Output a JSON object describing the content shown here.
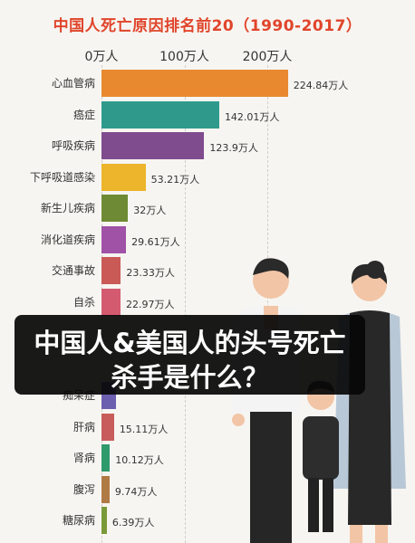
{
  "chart_data": {
    "type": "bar",
    "orientation": "horizontal",
    "title": "中国人死亡原因排名前20（1990-2017）",
    "x_ticks": [
      "0万人",
      "100万人",
      "200万人"
    ],
    "x_tick_values": [
      0,
      100,
      200
    ],
    "xlim": [
      0,
      250
    ],
    "grid": true,
    "categories": [
      "心血管病",
      "癌症",
      "呼吸疾病",
      "下呼吸道感染",
      "新生儿疾病",
      "消化道疾病",
      "交通事故",
      "自杀",
      "",
      "",
      "痴呆症",
      "肝病",
      "肾病",
      "腹泻",
      "糖尿病"
    ],
    "values": [
      224.84,
      142.01,
      123.9,
      53.21,
      32,
      29.61,
      23.33,
      22.97,
      null,
      null,
      18,
      15.11,
      10.12,
      9.74,
      6.39
    ],
    "value_labels": [
      "224.84万人",
      "142.01万人",
      "123.9万人",
      "53.21万人",
      "32万人",
      "29.61万人",
      "23.33万人",
      "22.97万人",
      "",
      "",
      "",
      "15.11万人",
      "10.12万人",
      "9.74万人",
      "6.39万人"
    ],
    "colors": [
      "#e8892f",
      "#2f9a8c",
      "#7f4c8e",
      "#ecb52b",
      "#6f8a34",
      "#a052a7",
      "#c95a55",
      "#d35a6f",
      "#5a9bd4",
      "#3e8f6f",
      "#6c5fb0",
      "#c85b5b",
      "#2f9a6c",
      "#b07a45",
      "#7a9a3a"
    ]
  },
  "overlay": {
    "line1": "中国人&美国人的头号死亡",
    "line2": "杀手是什么？"
  }
}
